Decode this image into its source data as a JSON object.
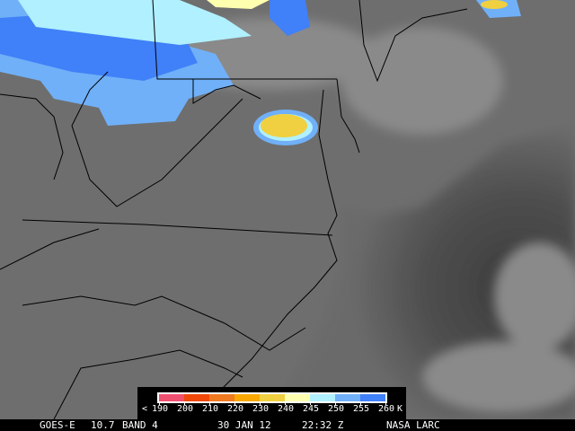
{
  "image": {
    "satellite": "GOES-E",
    "channel": "10.7",
    "band": "BAND 4",
    "date": "30 JAN 12",
    "time": "22:32 Z",
    "credit": "NASA LARC"
  },
  "legend": {
    "prefix": "<",
    "unit": "K",
    "ticks": [
      "190",
      "200",
      "210",
      "220",
      "230",
      "240",
      "245",
      "250",
      "255",
      "260"
    ],
    "colors": [
      "#f05070",
      "#f04808",
      "#f07a20",
      "#f8a800",
      "#f0d040",
      "#ffffb0",
      "#b0f0ff",
      "#70b0f8",
      "#4080f8"
    ]
  }
}
